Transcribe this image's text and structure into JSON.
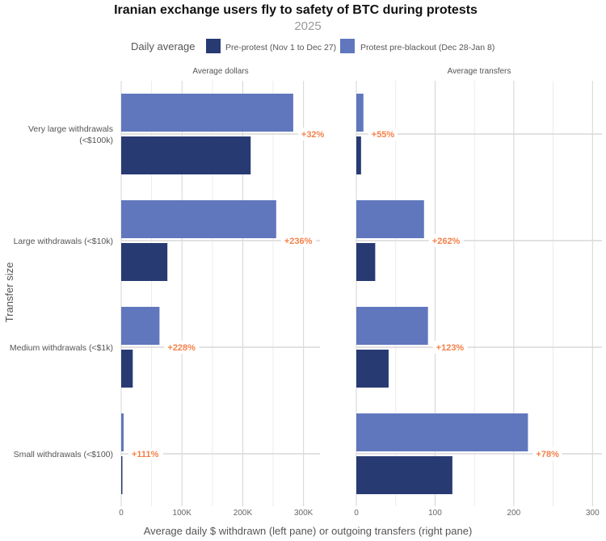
{
  "chart_data": {
    "type": "bar",
    "orientation": "horizontal",
    "title": "Iranian exchange users fly to safety of BTC during protests",
    "subtitle": "2025",
    "legend_title": "Daily average",
    "legend_placement": "top",
    "ylabel": "Transfer size",
    "xlabel": "Average daily $ withdrawn (left pane) or outgoing transfers (right pane)",
    "categories": [
      "Very large withdrawals\n(<$100k)",
      "Large withdrawals (<$10k)",
      "Medium withdrawals (<$1k)",
      "Small withdrawals (<$100)"
    ],
    "series_colors": {
      "Protest pre-blackout (Dec 28-Jan 8)": "#6077bd",
      "Pre-protest (Nov 1 to Dec 27)": "#283a72"
    },
    "annotation_color": "#f4814a",
    "grid": true,
    "panels": [
      {
        "title": "Average dollars",
        "xlim": [
          0,
          327000
        ],
        "ticks": [
          0,
          100000,
          200000,
          300000
        ],
        "tick_labels": [
          "0",
          "100K",
          "200K",
          "300K"
        ],
        "series": [
          {
            "name": "Protest pre-blackout (Dec 28-Jan 8)",
            "values": [
              283000,
              255000,
              63000,
              4000
            ]
          },
          {
            "name": "Pre-protest (Nov 1 to Dec 27)",
            "values": [
              213000,
              76000,
              19000,
              1900
            ]
          }
        ],
        "annotations": [
          "+32%",
          "+236%",
          "+228%",
          "+111%"
        ]
      },
      {
        "title": "Average transfers",
        "xlim": [
          0,
          312
        ],
        "ticks": [
          0,
          100,
          200,
          300
        ],
        "tick_labels": [
          "0",
          "100",
          "200",
          "300"
        ],
        "series": [
          {
            "name": "Protest pre-blackout (Dec 28-Jan 8)",
            "values": [
              9,
              86,
              91,
              218
            ]
          },
          {
            "name": "Pre-protest (Nov 1 to Dec 27)",
            "values": [
              6,
              24,
              41,
              122
            ]
          }
        ],
        "annotations": [
          "+55%",
          "+262%",
          "+123%",
          "+78%"
        ]
      }
    ]
  }
}
